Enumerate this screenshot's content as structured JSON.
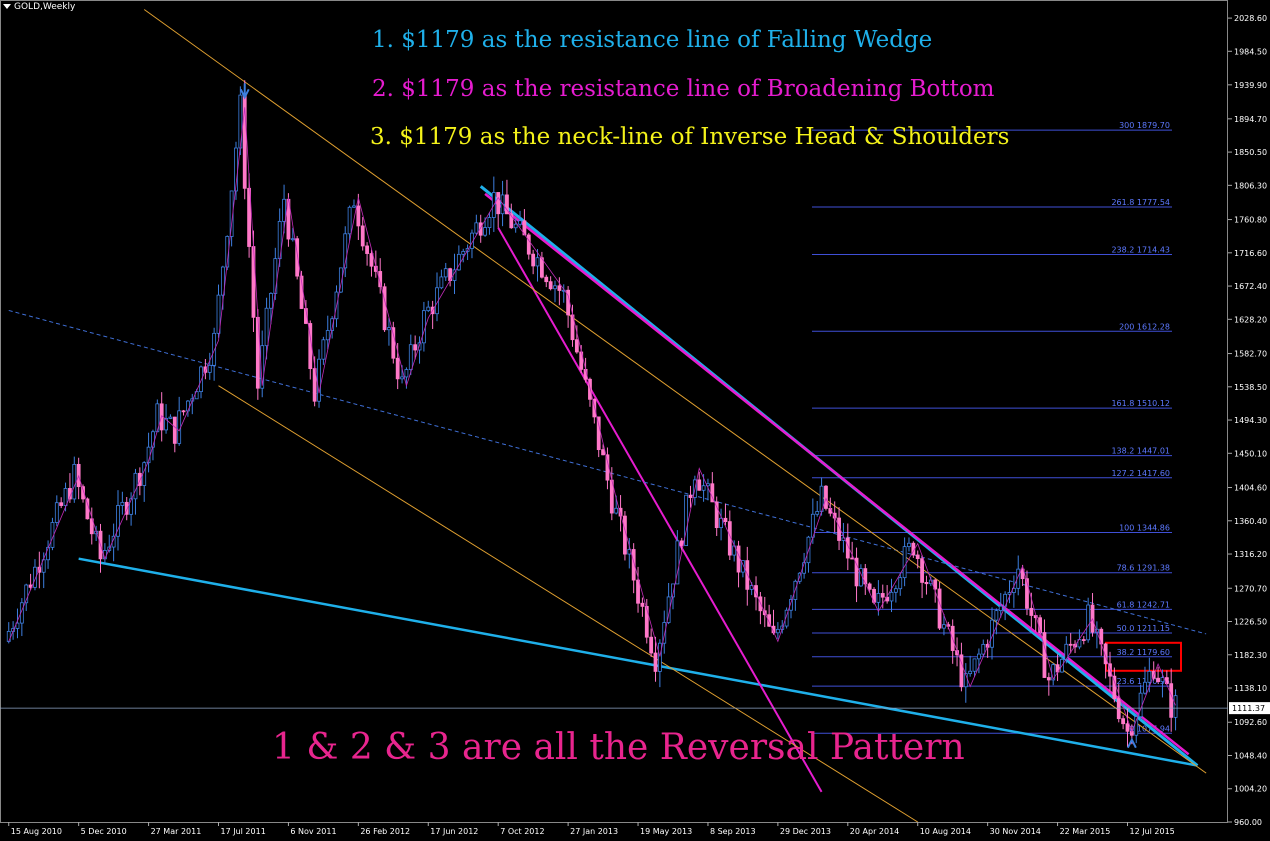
{
  "window": {
    "symbol_label": "GOLD,Weekly"
  },
  "annotations": {
    "line1": "1.   $1179 as the resistance line of Falling Wedge",
    "line2": "2.  $1179 as the resistance line of Broadening Bottom",
    "line3": "3.  $1179 as the neck-line of Inverse Head & Shoulders",
    "conclusion": "1 & 2 & 3   are all the Reversal Pattern"
  },
  "colors": {
    "background": "#000000",
    "bull_candle": "#3d7fe0",
    "bear_candle": "#ff78c8",
    "wedge_line": "#1fb0ea",
    "broadening_line": "#e61ccf",
    "fib_line": "#3f4fd6",
    "channel_line": "#e0a030",
    "highlight_box": "#ff0000",
    "axis_text": "#ffffff"
  },
  "chart_data": {
    "type": "candlestick",
    "symbol": "GOLD",
    "timeframe": "Weekly",
    "ylim": [
      960,
      2050
    ],
    "y_ticks": [
      "2028.60",
      "1984.50",
      "1939.90",
      "1894.70",
      "1850.50",
      "1806.30",
      "1760.80",
      "1716.60",
      "1672.40",
      "1628.20",
      "1582.70",
      "1538.50",
      "1494.30",
      "1450.10",
      "1404.60",
      "1360.40",
      "1316.20",
      "1270.70",
      "1226.50",
      "1182.30",
      "1138.10",
      "1092.60",
      "1048.40",
      "1004.20",
      "960.00"
    ],
    "current_price": "1111.37",
    "x_ticks": [
      "15 Aug 2010",
      "5 Dec 2010",
      "27 Mar 2011",
      "17 Jul 2011",
      "6 Nov 2011",
      "26 Feb 2012",
      "17 Jun 2012",
      "7 Oct 2012",
      "27 Jan 2013",
      "19 May 2013",
      "8 Sep 2013",
      "29 Dec 2013",
      "20 Apr 2014",
      "10 Aug 2014",
      "30 Nov 2014",
      "22 Mar 2015",
      "12 Jul 2015"
    ],
    "price_path": [
      [
        "15 Aug 2010",
        1200
      ],
      [
        "5 Dec 2010",
        1420
      ],
      [
        "16 Jan 2011",
        1310
      ],
      [
        "27 Mar 2011",
        1440
      ],
      [
        "17 Apr 2011",
        1500
      ],
      [
        "15 May 2011",
        1480
      ],
      [
        "17 Jul 2011",
        1600
      ],
      [
        "28 Aug 2011",
        1910
      ],
      [
        "25 Sep 2011",
        1540
      ],
      [
        "6 Nov 2011",
        1790
      ],
      [
        "25 Dec 2011",
        1530
      ],
      [
        "26 Feb 2012",
        1790
      ],
      [
        "13 May 2012",
        1540
      ],
      [
        "17 Jun 2012",
        1630
      ],
      [
        "7 Oct 2012",
        1790
      ],
      [
        "27 Jan 2013",
        1660
      ],
      [
        "14 Apr 2013",
        1390
      ],
      [
        "23 Jun 2013",
        1180
      ],
      [
        "25 Aug 2013",
        1430
      ],
      [
        "29 Dec 2013",
        1200
      ],
      [
        "16 Mar 2014",
        1390
      ],
      [
        "8 Jun 2014",
        1240
      ],
      [
        "10 Aug 2014",
        1330
      ],
      [
        "2 Nov 2014",
        1140
      ],
      [
        "25 Jan 2015",
        1300
      ],
      [
        "15 Mar 2015",
        1150
      ],
      [
        "17 May 2015",
        1230
      ],
      [
        "19 Jul 2015",
        1080
      ],
      [
        "30 Aug 2015",
        1170
      ],
      [
        "27 Sep 2015",
        1115
      ]
    ],
    "fibonacci_levels": [
      {
        "ratio": "300",
        "price": "1879.70"
      },
      {
        "ratio": "261.8",
        "price": "1777.54"
      },
      {
        "ratio": "238.2",
        "price": "1714.43"
      },
      {
        "ratio": "200",
        "price": "1612.28"
      },
      {
        "ratio": "161.8",
        "price": "1510.12"
      },
      {
        "ratio": "138.2",
        "price": "1447.01"
      },
      {
        "ratio": "127.2",
        "price": "1417.60"
      },
      {
        "ratio": "100",
        "price": "1344.86"
      },
      {
        "ratio": "78.6",
        "price": "1291.38"
      },
      {
        "ratio": "61.8",
        "price": "1242.71"
      },
      {
        "ratio": "50.0",
        "price": "1211.15"
      },
      {
        "ratio": "38.2",
        "price": "1179.60"
      },
      {
        "ratio": "23.6",
        "price": "1140.55"
      },
      {
        "ratio": "0",
        "price": "1077.94"
      }
    ],
    "highlighted_level": "38.2 1179.60",
    "trendlines": [
      {
        "name": "wedge-upper",
        "from": [
          "9 Sep 2012",
          1805
        ],
        "to": [
          "1 Nov 2015",
          1035
        ]
      },
      {
        "name": "wedge-lower",
        "from": [
          "5 Dec 2010",
          1310
        ],
        "to": [
          "1 Nov 2015",
          1035
        ]
      },
      {
        "name": "broadening-upper",
        "from": [
          "16 Sep 2012",
          1795
        ],
        "to": [
          "18 Oct 2015",
          1050
        ]
      },
      {
        "name": "broadening-steep",
        "from": [
          "7 Oct 2012",
          1750
        ],
        "to": [
          "9 Mar 2014",
          1000
        ]
      },
      {
        "name": "neckline-dotted",
        "from": [
          "15 Aug 2010",
          1640
        ],
        "to": [
          "15 Nov 2015",
          1210
        ]
      },
      {
        "name": "channel-upper",
        "from": [
          "20 Mar 2011",
          2040
        ],
        "to": [
          "15 Nov 2015",
          1025
        ]
      },
      {
        "name": "channel-lower",
        "from": [
          "17 Jul 2011",
          1540
        ],
        "to": [
          "10 Aug 2014",
          960
        ]
      }
    ]
  }
}
